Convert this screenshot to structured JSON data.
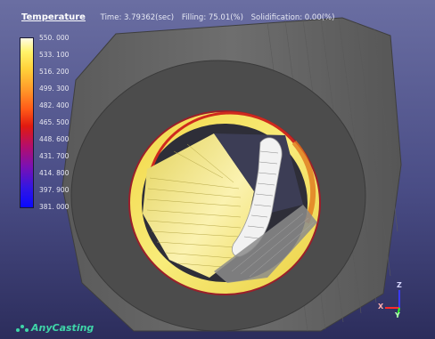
{
  "header": {
    "title": "Temperature",
    "time": "Time: 3.79362(sec)",
    "filling": "Filling: 75.01(%)",
    "solidification": "Solidification:  0.00(%)"
  },
  "legend": {
    "ticks": [
      "550. 000",
      "533. 100",
      "516. 200",
      "499. 300",
      "482. 400",
      "465. 500",
      "448. 600",
      "431. 700",
      "414. 800",
      "397. 900",
      "381. 000"
    ]
  },
  "axes": {
    "z": "Z",
    "x": "X",
    "y": "Y"
  },
  "logo": {
    "text": "AnyCasting"
  },
  "colors": {
    "background_top": "#6a6ea2",
    "background_bottom": "#2c2d5c",
    "mold_gray": "#6b6b6b",
    "metal_yellow": "#f6e66a",
    "logo_green": "#3fd5a8"
  }
}
